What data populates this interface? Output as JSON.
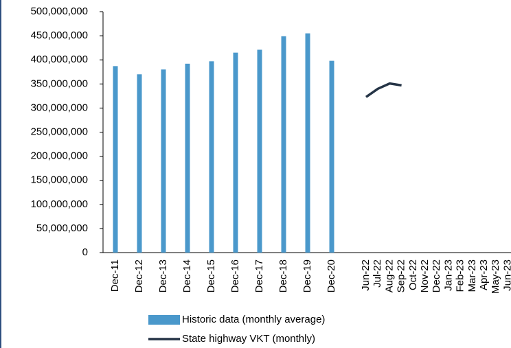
{
  "chart_data": {
    "type": "combo",
    "categories": [
      "Dec-11",
      "Dec-12",
      "Dec-13",
      "Dec-14",
      "Dec-15",
      "Dec-16",
      "Dec-17",
      "Dec-18",
      "Dec-19",
      "Dec-20",
      null,
      "Jun-22",
      "Jul-22",
      "Aug-22",
      "Sep-22",
      "Oct-22",
      "Nov-22",
      "Dec-22",
      "Jan-23",
      "Feb-23",
      "Mar-23",
      "Apr-23",
      "May-23",
      "Jun-23"
    ],
    "series": [
      {
        "name": "Historic data (monthly average)",
        "type": "bar",
        "color": "#4a98cb",
        "values": [
          387000000,
          370000000,
          380000000,
          392000000,
          397000000,
          415000000,
          421000000,
          449000000,
          455000000,
          398000000,
          null,
          null,
          null,
          null,
          null,
          null,
          null,
          null,
          null,
          null,
          null,
          null,
          null,
          null
        ]
      },
      {
        "name": "State highway VKT (monthly)",
        "type": "line",
        "color": "#253446",
        "values": [
          null,
          null,
          null,
          null,
          null,
          null,
          null,
          null,
          null,
          null,
          null,
          323000000,
          340000000,
          351000000,
          347000000,
          null,
          null,
          null,
          null,
          null,
          null,
          null,
          null,
          null
        ]
      }
    ],
    "ylim": [
      0,
      500000000
    ],
    "yticks": [
      0,
      {
        "value": 50000000,
        "label": "50,000,000"
      },
      {
        "value": 100000000,
        "label": "100,000,000"
      },
      {
        "value": 150000000,
        "label": "150,000,000"
      },
      {
        "value": 200000000,
        "label": "200,000,000"
      },
      {
        "value": 250000000,
        "label": "250,000,000"
      },
      {
        "value": 300000000,
        "label": "300,000,000"
      },
      {
        "value": 350000000,
        "label": "350,000,000"
      },
      {
        "value": 400000000,
        "label": "400,000,000"
      },
      {
        "value": 450000000,
        "label": "450,000,000"
      },
      {
        "value": 500000000,
        "label": "500,000,000"
      }
    ],
    "legend": "bottom"
  }
}
